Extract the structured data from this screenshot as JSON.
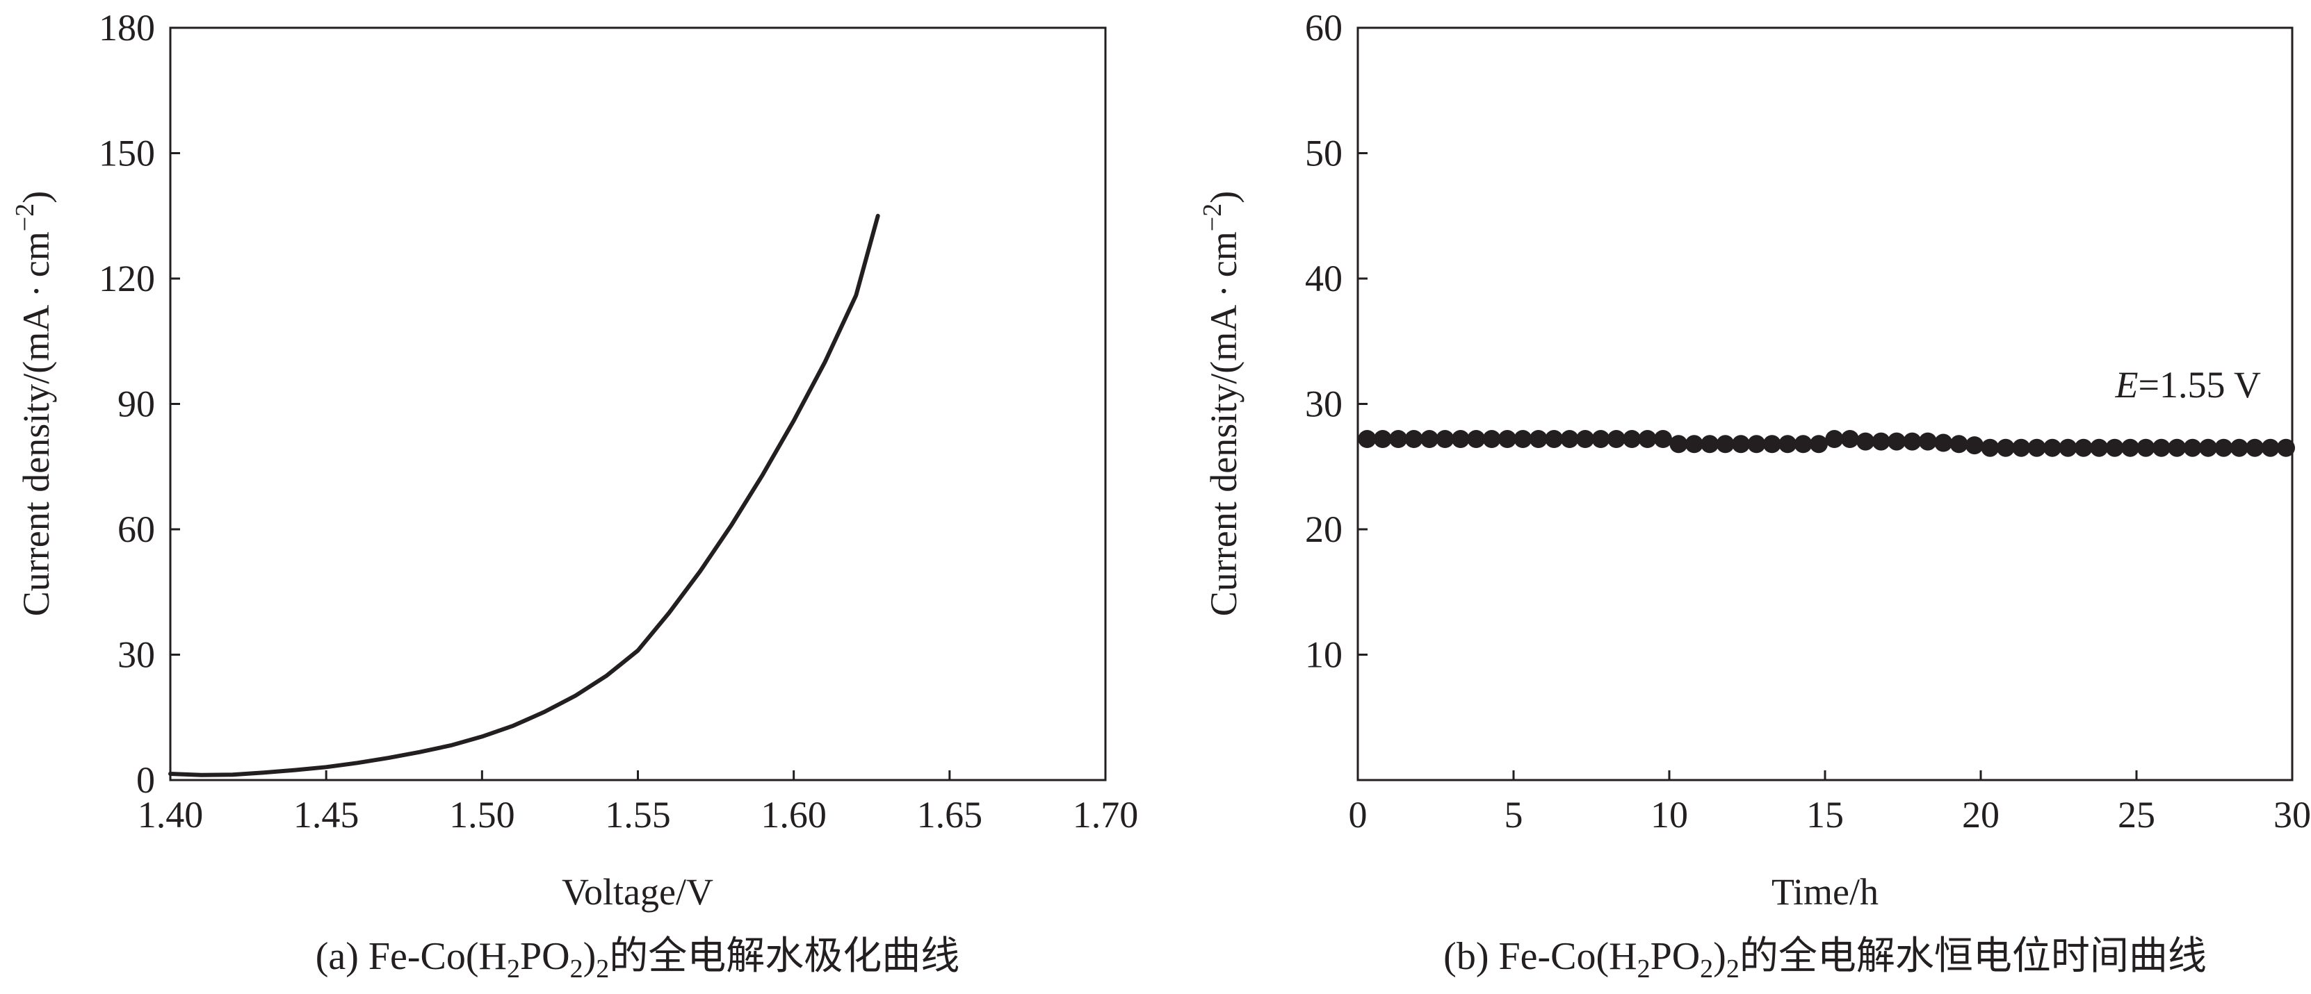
{
  "chart_data": [
    {
      "type": "line",
      "xlabel": "Voltage/V",
      "ylabel": "Current density/(mA · cm",
      "ylabel_sup": "−2",
      "ylabel_end": ")",
      "xlim": [
        1.4,
        1.7
      ],
      "ylim": [
        0,
        180
      ],
      "x_ticks": [
        "1.40",
        "1.45",
        "1.50",
        "1.55",
        "1.60",
        "1.65",
        "1.70"
      ],
      "y_ticks": [
        "0",
        "30",
        "60",
        "90",
        "120",
        "150",
        "180"
      ],
      "caption": {
        "prefix": "(a) Fe-Co(H",
        "sub1": "2",
        "mid": "PO",
        "sub2": "2",
        "close": ")",
        "sub3": "2",
        "suffix": "的全电解水极化曲线"
      },
      "series": [
        {
          "color": "#231f20",
          "x": [
            1.4,
            1.41,
            1.42,
            1.43,
            1.44,
            1.45,
            1.46,
            1.47,
            1.48,
            1.49,
            1.5,
            1.51,
            1.52,
            1.53,
            1.54,
            1.55,
            1.56,
            1.57,
            1.58,
            1.59,
            1.6,
            1.61,
            1.62,
            1.627
          ],
          "y": [
            1.5,
            1.2,
            1.3,
            1.8,
            2.4,
            3.1,
            4.1,
            5.3,
            6.7,
            8.3,
            10.4,
            13.0,
            16.3,
            20.2,
            25.0,
            31.0,
            40.0,
            50.0,
            61.0,
            73.0,
            86.0,
            100.0,
            116.0,
            135.0
          ]
        }
      ]
    },
    {
      "type": "scatter",
      "xlabel": "Time/h",
      "ylabel": "Current density/(mA · cm",
      "ylabel_sup": "−2",
      "ylabel_end": ")",
      "xlim": [
        0,
        30
      ],
      "ylim": [
        0,
        60
      ],
      "x_ticks": [
        "0",
        "5",
        "10",
        "15",
        "20",
        "25",
        "30"
      ],
      "y_ticks": [
        "10",
        "20",
        "30",
        "40",
        "50",
        "60"
      ],
      "annotation": {
        "italic": "E",
        "text": "=1.55 V"
      },
      "caption": {
        "prefix": "(b) Fe-Co(H",
        "sub1": "2",
        "mid": "PO",
        "sub2": "2",
        "close": ")",
        "sub3": "2",
        "suffix": "的全电解水恒电位时间曲线"
      },
      "series": [
        {
          "color": "#231f20",
          "x": [
            0.3,
            0.8,
            1.3,
            1.8,
            2.3,
            2.8,
            3.3,
            3.8,
            4.3,
            4.8,
            5.3,
            5.8,
            6.3,
            6.8,
            7.3,
            7.8,
            8.3,
            8.8,
            9.3,
            9.8,
            10.3,
            10.8,
            11.3,
            11.8,
            12.3,
            12.8,
            13.3,
            13.8,
            14.3,
            14.8,
            15.3,
            15.8,
            16.3,
            16.8,
            17.3,
            17.8,
            18.3,
            18.8,
            19.3,
            19.8,
            20.3,
            20.8,
            21.3,
            21.8,
            22.3,
            22.8,
            23.3,
            23.8,
            24.3,
            24.8,
            25.3,
            25.8,
            26.3,
            26.8,
            27.3,
            27.8,
            28.3,
            28.8,
            29.3,
            29.8
          ],
          "y": [
            27.2,
            27.2,
            27.2,
            27.2,
            27.2,
            27.2,
            27.2,
            27.2,
            27.2,
            27.2,
            27.2,
            27.2,
            27.2,
            27.2,
            27.2,
            27.2,
            27.2,
            27.2,
            27.2,
            27.2,
            26.8,
            26.8,
            26.8,
            26.8,
            26.8,
            26.8,
            26.8,
            26.8,
            26.8,
            26.8,
            27.2,
            27.2,
            27.0,
            27.0,
            27.0,
            27.0,
            27.0,
            26.9,
            26.8,
            26.7,
            26.5,
            26.5,
            26.5,
            26.5,
            26.5,
            26.5,
            26.5,
            26.5,
            26.5,
            26.5,
            26.5,
            26.5,
            26.5,
            26.5,
            26.5,
            26.5,
            26.5,
            26.5,
            26.5,
            26.5
          ]
        }
      ]
    }
  ]
}
